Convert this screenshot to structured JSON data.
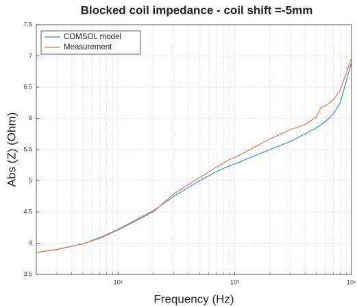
{
  "chart_data": {
    "type": "line",
    "title": "Blocked coil impedance - coil shift =-5mm",
    "xlabel": "Frequency (Hz)",
    "ylabel": "Abs (Z) (Ohm)",
    "xscale": "log",
    "x": [
      20,
      30,
      50,
      70,
      100,
      200,
      300,
      500,
      700,
      900,
      1000,
      2000,
      3000,
      4000,
      5000,
      5500,
      6000,
      7000,
      8000,
      10000
    ],
    "series": [
      {
        "name": "COMSOL model",
        "color": "#3d86c6",
        "values": [
          3.85,
          3.9,
          3.99,
          4.09,
          4.22,
          4.52,
          4.75,
          5.0,
          5.15,
          5.24,
          5.27,
          5.5,
          5.63,
          5.75,
          5.85,
          5.9,
          5.95,
          6.07,
          6.25,
          6.9
        ]
      },
      {
        "name": "Measurement",
        "color": "#e0744c",
        "values": [
          3.85,
          3.9,
          3.99,
          4.08,
          4.21,
          4.5,
          4.79,
          5.05,
          5.22,
          5.34,
          5.37,
          5.67,
          5.82,
          5.9,
          6.02,
          6.18,
          6.2,
          6.3,
          6.45,
          6.97
        ]
      }
    ],
    "xlim": [
      20,
      10000
    ],
    "ylim": [
      3.5,
      7.5
    ],
    "xticks": [
      {
        "value": 100,
        "label": "10²"
      },
      {
        "value": 1000,
        "label": "10³"
      },
      {
        "value": 10000,
        "label": "10⁴"
      }
    ],
    "x_minor_ticks": [
      20,
      30,
      40,
      50,
      60,
      70,
      80,
      90,
      200,
      300,
      400,
      500,
      600,
      700,
      800,
      900,
      2000,
      3000,
      4000,
      5000,
      6000,
      7000,
      8000,
      9000
    ],
    "yticks": [
      3.5,
      4,
      4.5,
      5,
      5.5,
      6,
      6.5,
      7,
      7.5
    ],
    "grid": true,
    "legend": "upper left"
  }
}
